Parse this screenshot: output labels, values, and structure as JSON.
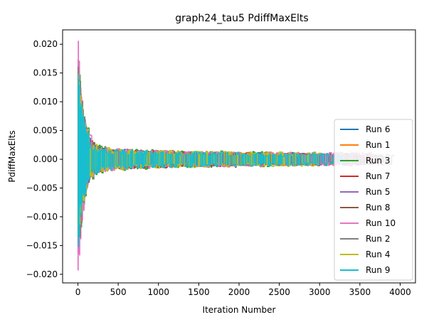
{
  "chart_data": {
    "type": "line",
    "title": "graph24_tau5 PdiffMaxElts",
    "xlabel": "Iteration Number",
    "ylabel": "PdiffMaxElts",
    "xlim": [
      -190,
      4190
    ],
    "ylim": [
      -0.0215,
      0.0225
    ],
    "xticks": [
      "0",
      "500",
      "1000",
      "1500",
      "2000",
      "2500",
      "3000",
      "3500",
      "4000"
    ],
    "yticks": [
      "−0.020",
      "−0.015",
      "−0.010",
      "−0.005",
      "0.000",
      "0.005",
      "0.010",
      "0.015",
      "0.020"
    ],
    "legend_position": "lower right",
    "grid": false,
    "series": [
      {
        "name": "Run 6",
        "color": "#1f77b4",
        "length": 3300,
        "amp_start": 0.0155,
        "amp_end": 0.0011,
        "seed": 6
      },
      {
        "name": "Run 1",
        "color": "#ff7f0e",
        "length": 3500,
        "amp_start": 0.016,
        "amp_end": 0.0011,
        "seed": 1
      },
      {
        "name": "Run 3",
        "color": "#2ca02c",
        "length": 2400,
        "amp_start": 0.019,
        "amp_end": 0.0013,
        "seed": 3
      },
      {
        "name": "Run 7",
        "color": "#d62728",
        "length": 3100,
        "amp_start": 0.016,
        "amp_end": 0.0011,
        "seed": 7
      },
      {
        "name": "Run 5",
        "color": "#9467bd",
        "length": 3650,
        "amp_start": 0.0165,
        "amp_end": 0.001,
        "seed": 5
      },
      {
        "name": "Run 8",
        "color": "#8c564b",
        "length": 3800,
        "amp_start": 0.017,
        "amp_end": 0.001,
        "seed": 8
      },
      {
        "name": "Run 10",
        "color": "#e377c2",
        "length": 3700,
        "amp_start": 0.021,
        "amp_end": 0.0012,
        "seed": 10
      },
      {
        "name": "Run 2",
        "color": "#7f7f7f",
        "length": 3900,
        "amp_start": 0.019,
        "amp_end": 0.0009,
        "seed": 2
      },
      {
        "name": "Run 4",
        "color": "#bcbd22",
        "length": 3000,
        "amp_start": 0.016,
        "amp_end": 0.0012,
        "seed": 4
      },
      {
        "name": "Run 9",
        "color": "#17becf",
        "length": 3300,
        "amp_start": 0.0155,
        "amp_end": 0.0011,
        "seed": 9
      }
    ]
  }
}
